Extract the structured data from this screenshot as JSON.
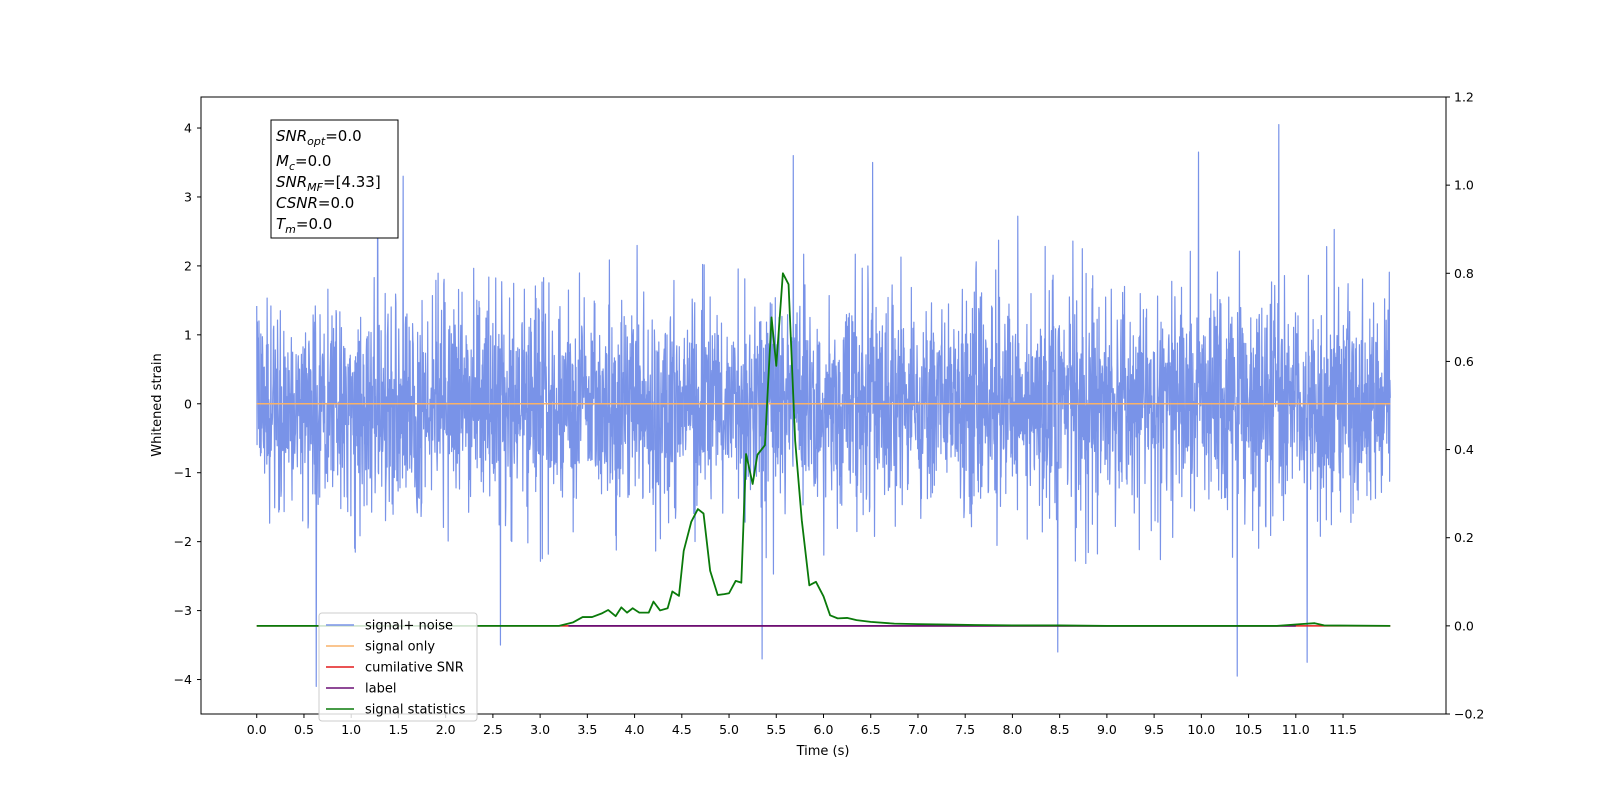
{
  "chart_data": {
    "type": "line",
    "title": "",
    "xlabel": "Time (s)",
    "ylabel": "Whitened strain",
    "xlim": [
      -0.59,
      12.59
    ],
    "ylim": [
      -4.5,
      4.45
    ],
    "y2lim": [
      -0.2,
      1.2
    ],
    "x_ticks": [
      0.0,
      0.5,
      1.0,
      1.5,
      2.0,
      2.5,
      3.0,
      3.5,
      4.0,
      4.5,
      5.0,
      5.5,
      6.0,
      6.5,
      7.0,
      7.5,
      8.0,
      8.5,
      9.0,
      9.5,
      10.0,
      10.5,
      11.0,
      11.5
    ],
    "x_tick_labels": [
      "0.0",
      "0.5",
      "1.0",
      "1.5",
      "2.0",
      "2.5",
      "3.0",
      "3.5",
      "4.0",
      "4.5",
      "5.0",
      "5.5",
      "6.0",
      "6.5",
      "7.0",
      "7.5",
      "8.0",
      "8.5",
      "9.0",
      "9.5",
      "10.0",
      "10.5",
      "11.0",
      "11.5"
    ],
    "y_ticks": [
      4,
      3,
      2,
      1,
      0,
      -1,
      -2,
      -3,
      -4
    ],
    "y_tick_labels": [
      "4",
      "3",
      "2",
      "1",
      "0",
      "−1",
      "−2",
      "−3",
      "−4"
    ],
    "y2_ticks": [
      1.2,
      1.0,
      0.8,
      0.6,
      0.4,
      0.2,
      0.0,
      -0.2
    ],
    "y2_tick_labels": [
      "1.2",
      "1.0",
      "0.8",
      "0.6",
      "0.4",
      "0.2",
      "0.0",
      "−0.2"
    ],
    "grid": false,
    "legend_position": "lower-left",
    "noise": {
      "x_start": 0.0,
      "x_end": 12.0,
      "sigma": 0.78,
      "peaks": [
        {
          "x": 0.63,
          "y": -4.1
        },
        {
          "x": 1.28,
          "y": 3.9
        },
        {
          "x": 1.55,
          "y": 3.3
        },
        {
          "x": 2.58,
          "y": -3.5
        },
        {
          "x": 5.35,
          "y": -3.7
        },
        {
          "x": 5.68,
          "y": 3.6
        },
        {
          "x": 6.52,
          "y": 3.5
        },
        {
          "x": 8.48,
          "y": -3.6
        },
        {
          "x": 10.38,
          "y": -3.95
        },
        {
          "x": 10.82,
          "y": 4.05
        },
        {
          "x": 11.12,
          "y": -3.75
        },
        {
          "x": 9.97,
          "y": 3.65
        }
      ]
    },
    "series": [
      {
        "name": "signal+ noise",
        "color": "#7993e8",
        "axis": "left"
      },
      {
        "name": "signal only",
        "color": "#f8b26a",
        "axis": "left",
        "x": [
          0.0,
          12.0
        ],
        "y": [
          0.0,
          0.0
        ]
      },
      {
        "name": "cumilative SNR",
        "color": "#e41a1c",
        "axis": "right",
        "x": [
          0.0,
          12.0
        ],
        "y": [
          0.0,
          0.0
        ]
      },
      {
        "name": "label",
        "color": "#6a0f75",
        "axis": "right",
        "x": [
          3.3,
          11.0
        ],
        "y": [
          0.0,
          0.0
        ]
      },
      {
        "name": "signal statistics",
        "color": "#0a7a0a",
        "axis": "right",
        "x": [
          0.0,
          3.2,
          3.35,
          3.45,
          3.55,
          3.65,
          3.72,
          3.8,
          3.86,
          3.92,
          3.98,
          4.05,
          4.15,
          4.2,
          4.27,
          4.35,
          4.4,
          4.47,
          4.52,
          4.6,
          4.67,
          4.73,
          4.8,
          4.88,
          4.95,
          5.0,
          5.07,
          5.13,
          5.18,
          5.25,
          5.3,
          5.38,
          5.45,
          5.5,
          5.57,
          5.63,
          5.7,
          5.77,
          5.85,
          5.92,
          6.0,
          6.07,
          6.15,
          6.25,
          6.35,
          6.5,
          6.75,
          7.0,
          7.3,
          7.6,
          8.0,
          8.5,
          9.0,
          10.0,
          10.8,
          11.05,
          11.2,
          11.3,
          12.0
        ],
        "y": [
          0.0,
          0.0,
          0.008,
          0.02,
          0.02,
          0.028,
          0.036,
          0.022,
          0.042,
          0.03,
          0.04,
          0.03,
          0.03,
          0.055,
          0.035,
          0.04,
          0.078,
          0.068,
          0.17,
          0.236,
          0.265,
          0.255,
          0.125,
          0.07,
          0.072,
          0.074,
          0.102,
          0.098,
          0.39,
          0.322,
          0.388,
          0.41,
          0.7,
          0.59,
          0.8,
          0.775,
          0.42,
          0.24,
          0.092,
          0.1,
          0.067,
          0.024,
          0.017,
          0.018,
          0.013,
          0.009,
          0.005,
          0.004,
          0.003,
          0.002,
          0.001,
          0.001,
          0.0,
          0.0,
          0.0,
          0.004,
          0.006,
          0.001,
          0.0
        ]
      }
    ]
  },
  "annotation": {
    "lines": [
      {
        "main": "SNR",
        "sub": "opt",
        "rest": "=0.0"
      },
      {
        "main": "M",
        "sub": "c",
        "rest": "=0.0"
      },
      {
        "main": "SNR",
        "sub": "MF",
        "rest": "=[4.33]"
      },
      {
        "main": "CSNR",
        "sub": "",
        "rest": "=0.0"
      },
      {
        "main": "T",
        "sub": "m",
        "rest": "=0.0"
      }
    ]
  },
  "legend": {
    "entries": [
      {
        "label": "signal+ noise",
        "color": "#7993e8"
      },
      {
        "label": "signal only",
        "color": "#f8b26a"
      },
      {
        "label": "cumilative SNR",
        "color": "#e41a1c"
      },
      {
        "label": "label",
        "color": "#6a0f75"
      },
      {
        "label": "signal statistics",
        "color": "#0a7a0a"
      }
    ]
  }
}
